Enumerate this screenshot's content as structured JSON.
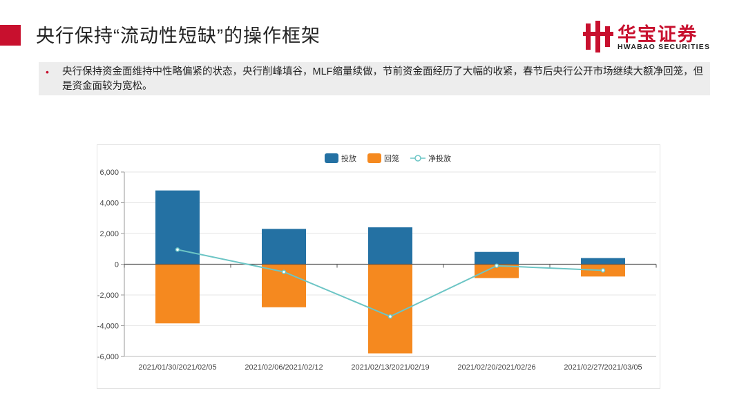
{
  "slide": {
    "title": "央行保持“流动性短缺”的操作框架",
    "bullet": "央行保持资金面维持中性略偏紧的状态，央行削峰填谷，MLF缩量续做，节前资金面经历了大幅的收紧，春节后央行公开市场继续大额净回笼，但是资金面较为宽松。"
  },
  "logo": {
    "cn": "华宝证券",
    "en": "HWABAO SECURITIES",
    "brand_color": "#c8102e"
  },
  "chart_data": {
    "type": "bar",
    "categories": [
      "2021/01/30/2021/02/05",
      "2021/02/06/2021/02/12",
      "2021/02/13/2021/02/19",
      "2021/02/20/2021/02/26",
      "2021/02/27/2021/03/05"
    ],
    "series": [
      {
        "name": "投放",
        "kind": "bar",
        "color": "#2471a3",
        "values": [
          4800,
          2300,
          2400,
          800,
          400
        ]
      },
      {
        "name": "回笼",
        "kind": "bar",
        "color": "#f5891f",
        "values": [
          -3850,
          -2800,
          -5800,
          -900,
          -800
        ]
      },
      {
        "name": "净投放",
        "kind": "line",
        "color": "#6cc5c5",
        "values": [
          950,
          -500,
          -3400,
          -100,
          -400
        ]
      }
    ],
    "ylim": [
      -6000,
      6000
    ],
    "yticks": [
      "-6,000",
      "-4,000",
      "-2,000",
      "0",
      "2,000",
      "4,000",
      "6,000"
    ],
    "ytick_values": [
      -6000,
      -4000,
      -2000,
      0,
      2000,
      4000,
      6000
    ],
    "legend": "top-center",
    "grid": true
  }
}
